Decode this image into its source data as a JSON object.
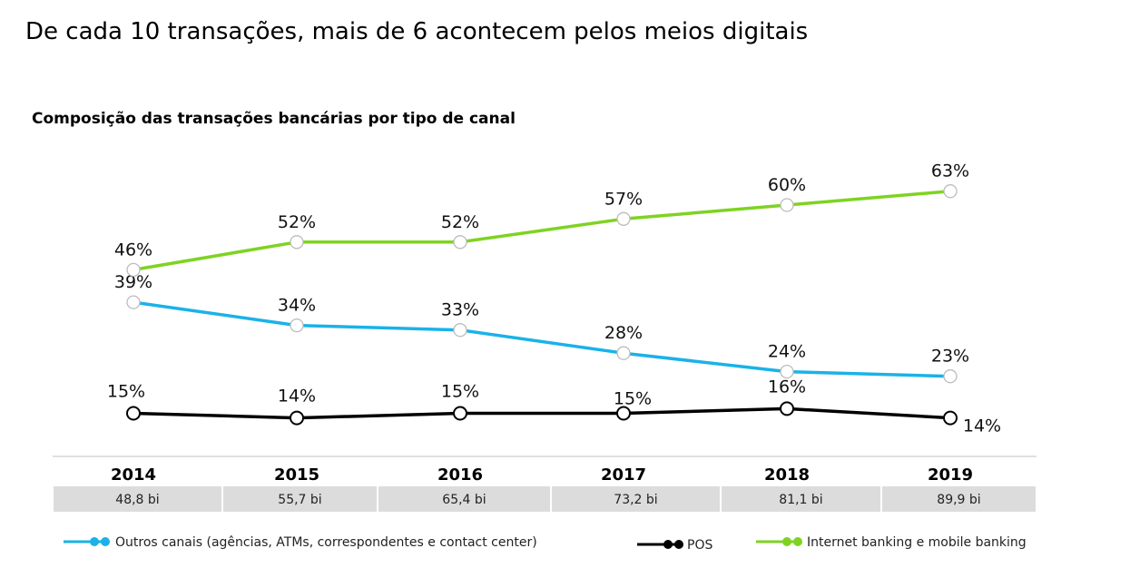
{
  "headline": "De cada 10 transações, mais de 6 acontecem pelos meios digitais",
  "chart_data": {
    "type": "line",
    "title": "Composição das transações bancárias por tipo de canal",
    "x": [
      "2014",
      "2015",
      "2016",
      "2017",
      "2018",
      "2019"
    ],
    "totals": [
      "48,8 bi",
      "55,7 bi",
      "65,4 bi",
      "73,2 bi",
      "81,1 bi",
      "89,9 bi"
    ],
    "unit": "%",
    "ylim": [
      0,
      70
    ],
    "grid": false,
    "legend_position": "bottom",
    "series": [
      {
        "name": "Outros canais (agências, ATMs, correspondentes e contact center)",
        "color": "#1ab2e8",
        "values": [
          39,
          34,
          33,
          28,
          24,
          23
        ],
        "labels": [
          "39%",
          "34%",
          "33%",
          "28%",
          "24%",
          "23%"
        ]
      },
      {
        "name": "POS",
        "color": "#000000",
        "values": [
          15,
          14,
          15,
          15,
          16,
          14
        ],
        "labels": [
          "15%",
          "14%",
          "15%",
          "15%",
          "16%",
          "14%"
        ]
      },
      {
        "name": "Internet banking e mobile banking",
        "color": "#7ed321",
        "values": [
          46,
          52,
          52,
          57,
          60,
          63
        ],
        "labels": [
          "46%",
          "52%",
          "52%",
          "57%",
          "60%",
          "63%"
        ]
      }
    ]
  }
}
